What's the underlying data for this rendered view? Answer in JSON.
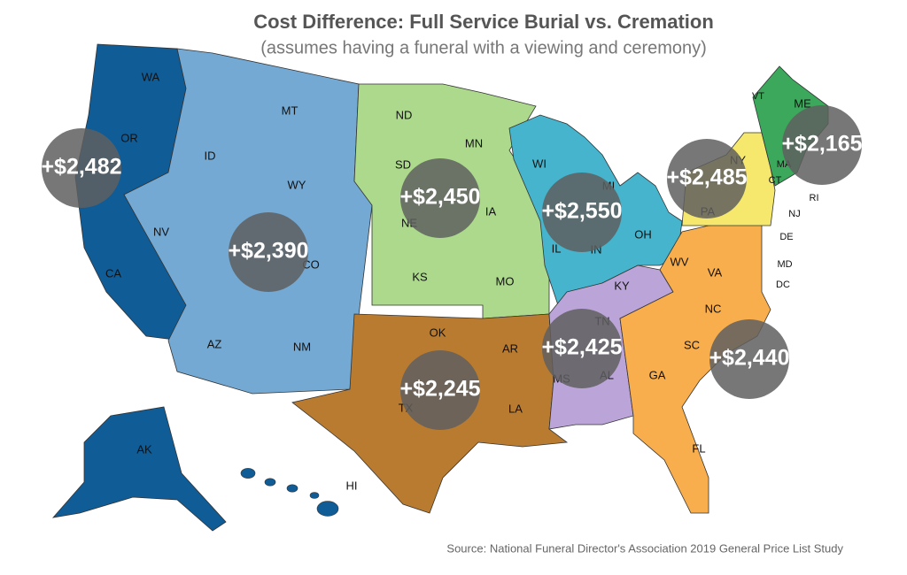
{
  "title": "Cost Difference: Full Service Burial vs. Cremation",
  "subtitle": "(assumes having a funeral with a viewing and ceremony)",
  "source": "Source: National Funeral Director's Association 2019 General Price List Study",
  "regions": [
    {
      "color": "#0f5c97",
      "states": [
        "WA",
        "OR",
        "CA",
        "AK",
        "HI"
      ],
      "cost": "+$2,482"
    },
    {
      "color": "#74a9d3",
      "states": [
        "MT",
        "ID",
        "WY",
        "NV",
        "CO",
        "AZ",
        "NM"
      ],
      "cost": "+$2,390"
    },
    {
      "color": "#acd98c",
      "states": [
        "ND",
        "SD",
        "MN",
        "NE",
        "IA",
        "KS",
        "MO"
      ],
      "cost": "+$2,450"
    },
    {
      "color": "#45b4cc",
      "states": [
        "WI",
        "MI",
        "IL",
        "IN",
        "OH"
      ],
      "cost": "+$2,550"
    },
    {
      "color": "#b97b2f",
      "states": [
        "OK",
        "TX",
        "AR",
        "LA"
      ],
      "cost": "+$2,245"
    },
    {
      "color": "#bba5d8",
      "states": [
        "KY",
        "TN",
        "MS",
        "AL"
      ],
      "cost": "+$2,425"
    },
    {
      "color": "#f8ae4c",
      "states": [
        "WV",
        "VA",
        "NC",
        "SC",
        "GA",
        "FL",
        "DE",
        "MD",
        "DC"
      ],
      "cost": "+$2,440"
    },
    {
      "color": "#f6e86c",
      "states": [
        "NY",
        "PA",
        "NJ"
      ],
      "cost": "+$2,485"
    },
    {
      "color": "#3ba85b",
      "states": [
        "VT",
        "ME",
        "MA",
        "CT",
        "RI"
      ],
      "cost": "+$2,165"
    }
  ]
}
